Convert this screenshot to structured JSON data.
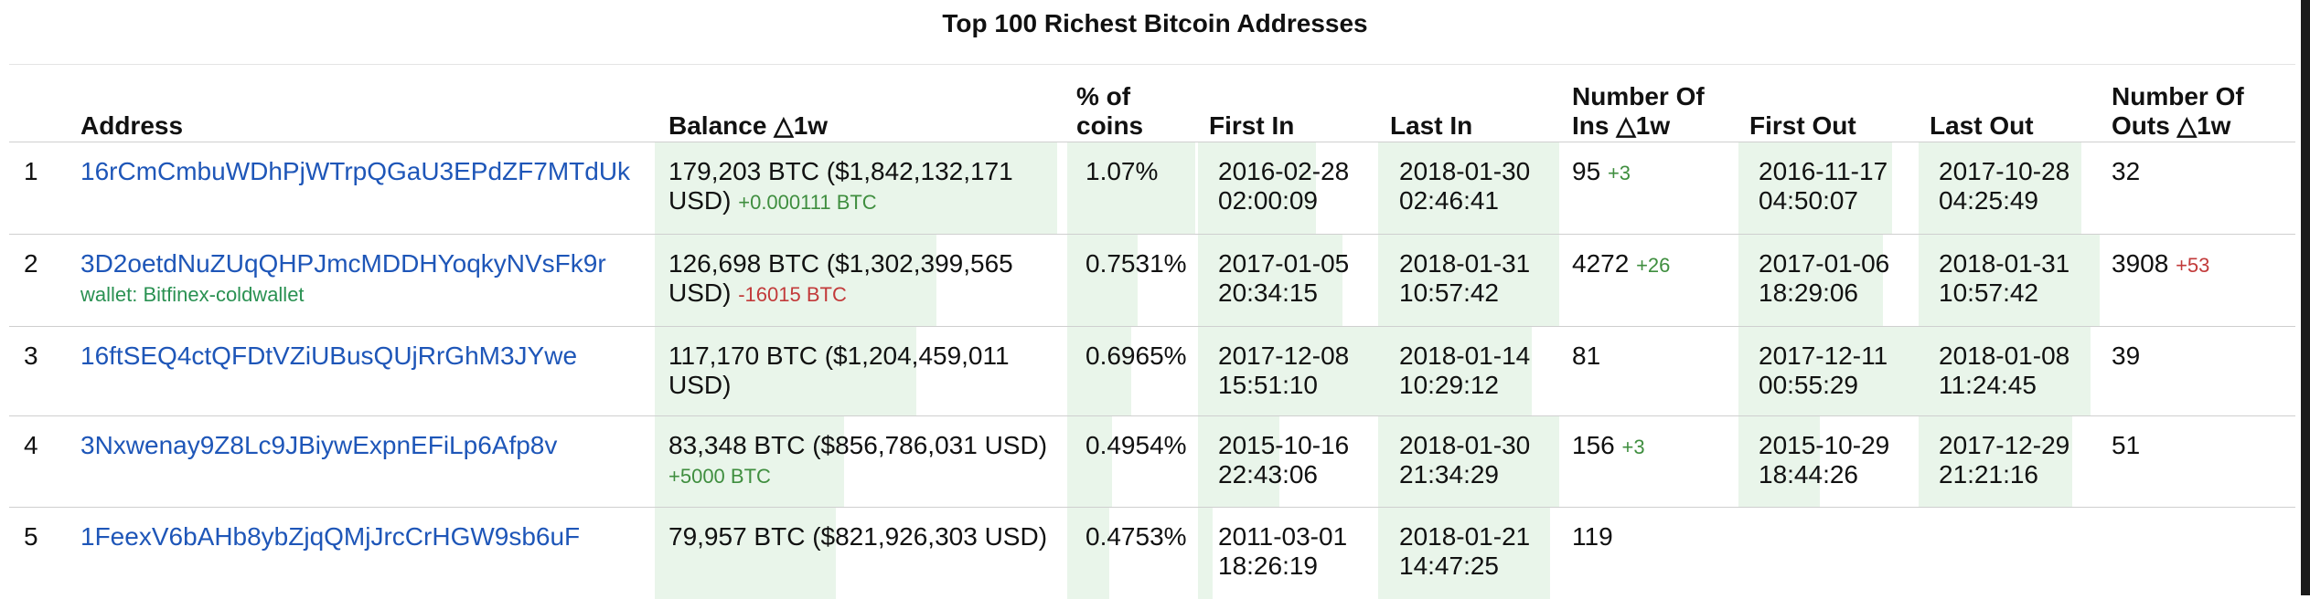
{
  "title": "Top 100 Richest Bitcoin Addresses",
  "columns": {
    "address": "Address",
    "balance": "Balance △1w",
    "pct": "% of coins",
    "first_in": "First In",
    "last_in": "Last In",
    "ins": "Number Of Ins △1w",
    "first_out": "First Out",
    "last_out": "Last Out",
    "outs": "Number Of Outs △1w"
  },
  "rows": [
    {
      "rank": "1",
      "address": "16rCmCmbuWDhPjWTrpQGaU3EPdZF7MTdUk",
      "wallet": "",
      "balance": "179,203 BTC ($1,842,132,171 USD)",
      "balance_change": "+0.000111 BTC",
      "balance_change_sign": "pos",
      "pct": "1.07%",
      "first_in": "2016-02-28 02:00:09",
      "last_in": "2018-01-30 02:46:41",
      "ins": "95",
      "ins_change": "+3",
      "first_out": "2016-11-17 04:50:07",
      "last_out": "2017-10-28 04:25:49",
      "outs": "32",
      "outs_change": "",
      "fills": {
        "balance": 1.0,
        "pct": 1.0,
        "first_in": 0.65,
        "last_in": 1.0,
        "ins": 0.0,
        "first_out": 0.85,
        "last_out": 0.9,
        "outs": 0.0
      }
    },
    {
      "rank": "2",
      "address": "3D2oetdNuZUqQHPJmcMDDHYoqkyNVsFk9r",
      "wallet": "wallet: Bitfinex-coldwallet",
      "balance": "126,698 BTC ($1,302,399,565 USD)",
      "balance_change": "-16015 BTC",
      "balance_change_sign": "neg",
      "pct": "0.7531%",
      "first_in": "2017-01-05 20:34:15",
      "last_in": "2018-01-31 10:57:42",
      "ins": "4272",
      "ins_change": "+26",
      "first_out": "2017-01-06 18:29:06",
      "last_out": "2018-01-31 10:57:42",
      "outs": "3908",
      "outs_change": "+53",
      "fills": {
        "balance": 0.7,
        "pct": 0.55,
        "first_in": 0.8,
        "last_in": 1.0,
        "ins": 0.0,
        "first_out": 0.8,
        "last_out": 1.0,
        "outs": 0.0
      }
    },
    {
      "rank": "3",
      "address": "16ftSEQ4ctQFDtVZiUBusQUjRrGhM3JYwe",
      "wallet": "",
      "balance": "117,170 BTC ($1,204,459,011 USD)",
      "balance_change": "",
      "balance_change_sign": "",
      "pct": "0.6965%",
      "first_in": "2017-12-08 15:51:10",
      "last_in": "2018-01-14 10:29:12",
      "ins": "81",
      "ins_change": "",
      "first_out": "2017-12-11 00:55:29",
      "last_out": "2018-01-08 11:24:45",
      "outs": "39",
      "outs_change": "",
      "fills": {
        "balance": 0.65,
        "pct": 0.5,
        "first_in": 1.0,
        "last_in": 0.85,
        "ins": 0.0,
        "first_out": 1.0,
        "last_out": 0.95,
        "outs": 0.0
      }
    },
    {
      "rank": "4",
      "address": "3Nxwenay9Z8Lc9JBiywExpnEFiLp6Afp8v",
      "wallet": "",
      "balance": "83,348 BTC ($856,786,031 USD)",
      "balance_change": "+5000 BTC",
      "balance_change_sign": "pos",
      "pct": "0.4954%",
      "first_in": "2015-10-16 22:43:06",
      "last_in": "2018-01-30 21:34:29",
      "ins": "156",
      "ins_change": "+3",
      "first_out": "2015-10-29 18:44:26",
      "last_out": "2017-12-29 21:21:16",
      "outs": "51",
      "outs_change": "",
      "fills": {
        "balance": 0.47,
        "pct": 0.35,
        "first_in": 0.45,
        "last_in": 1.0,
        "ins": 0.0,
        "first_out": 0.45,
        "last_out": 0.85,
        "outs": 0.0
      }
    },
    {
      "rank": "5",
      "address": "1FeexV6bAHb8ybZjqQMjJrcCrHGW9sb6uF",
      "wallet": "",
      "balance": "79,957 BTC ($821,926,303 USD)",
      "balance_change": "",
      "balance_change_sign": "",
      "pct": "0.4753%",
      "first_in": "2011-03-01 18:26:19",
      "last_in": "2018-01-21 14:47:25",
      "ins": "119",
      "ins_change": "",
      "first_out": "",
      "last_out": "",
      "outs": "",
      "outs_change": "",
      "fills": {
        "balance": 0.45,
        "pct": 0.33,
        "first_in": 0.08,
        "last_in": 0.95,
        "ins": 0.0,
        "first_out": 0.0,
        "last_out": 0.0,
        "outs": 0.0
      }
    }
  ],
  "colors": {
    "link": "#1e56b8",
    "wallet": "#2a9152",
    "positive": "#3f8e3f",
    "negative": "#c23a3a",
    "bar_fill": "#e9f5ea"
  }
}
